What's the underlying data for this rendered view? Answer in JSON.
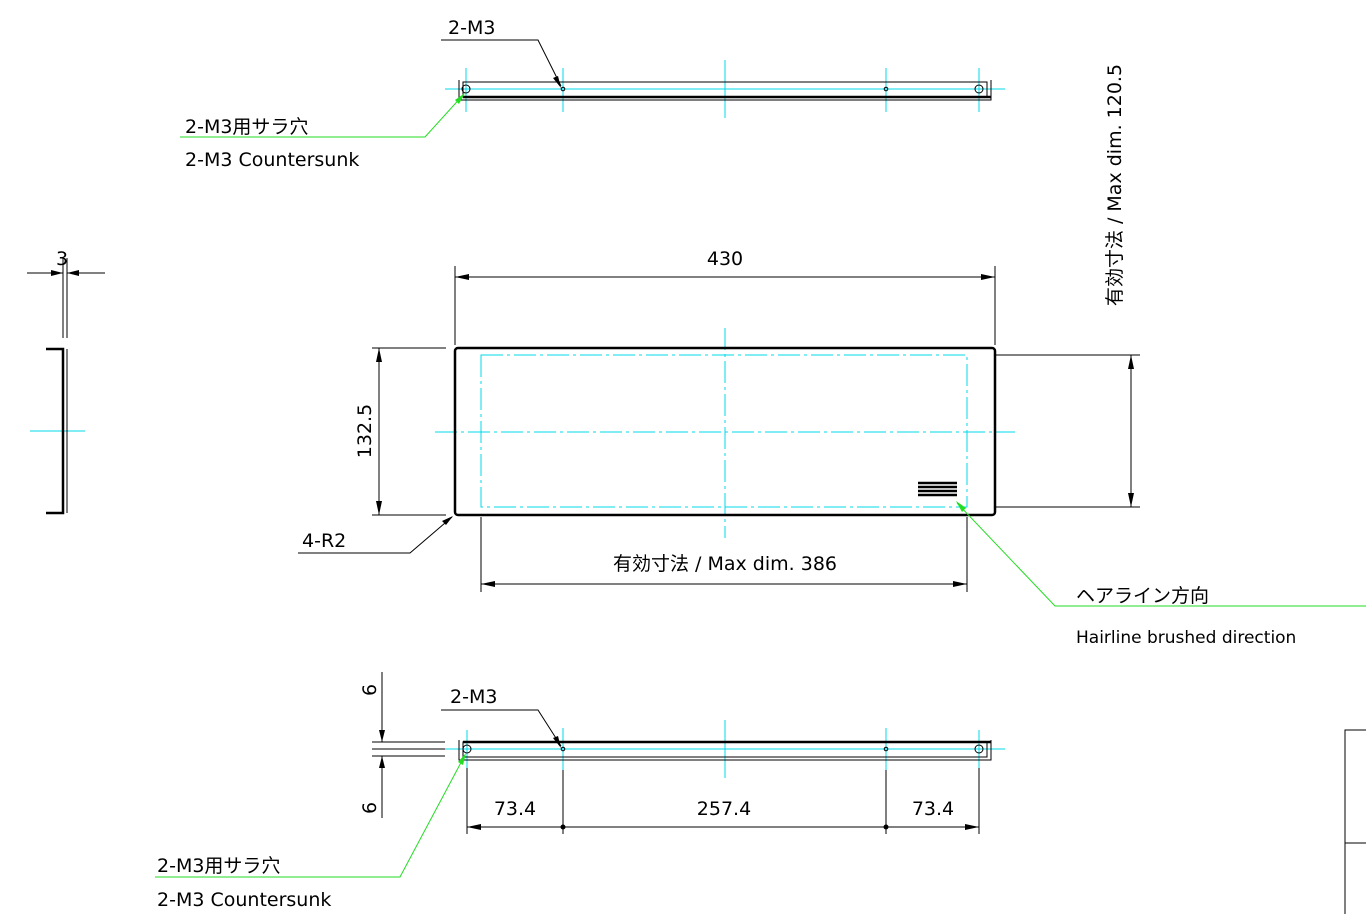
{
  "top_view": {
    "hole_label": "2-M3",
    "countersink_label_jp": "2-M3用サラ穴",
    "countersink_label_en": "2-M3 Countersunk"
  },
  "side_view": {
    "thickness": "3"
  },
  "front_view": {
    "width": "430",
    "height": "132.5",
    "corner_radius": "4-R2",
    "max_width": "有効寸法 / Max dim. 386",
    "max_height": "有効寸法 / Max dim. 120.5",
    "hairline_jp": "ヘアライン方向",
    "hairline_en": "Hairline brushed direction"
  },
  "bottom_view": {
    "hole_label": "2-M3",
    "offset_top": "6",
    "offset_bottom": "6",
    "spacing_left": "73.4",
    "spacing_center": "257.4",
    "spacing_right": "73.4",
    "countersink_label_jp": "2-M3用サラ穴",
    "countersink_label_en": "2-M3 Countersunk"
  },
  "colors": {
    "line": "#000000",
    "centerline": "#00d8e8",
    "leader": "#22dd22"
  }
}
